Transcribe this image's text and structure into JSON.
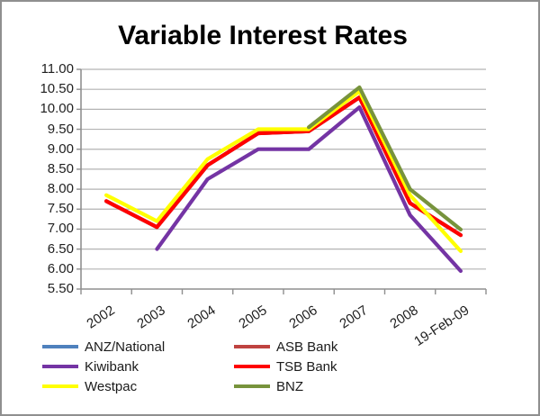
{
  "chart_data": {
    "type": "line",
    "title": "Variable Interest Rates",
    "categories": [
      "2002",
      "2003",
      "2004",
      "2005",
      "2006",
      "2007",
      "2008",
      "19-Feb-09"
    ],
    "series": [
      {
        "name": "ANZ/National",
        "color": "#4f81bd",
        "values": [
          7.7,
          7.05,
          8.6,
          9.4,
          9.45,
          10.3,
          7.65,
          6.85
        ]
      },
      {
        "name": "ASB Bank",
        "color": "#bf4340",
        "values": [
          7.7,
          7.05,
          8.6,
          9.4,
          9.45,
          10.3,
          7.65,
          6.85
        ]
      },
      {
        "name": "Kiwibank",
        "color": "#7434a4",
        "values": [
          null,
          6.5,
          8.25,
          9.0,
          9.0,
          10.05,
          7.35,
          5.95
        ]
      },
      {
        "name": "TSB Bank",
        "color": "#ff0000",
        "values": [
          7.7,
          7.05,
          8.6,
          9.4,
          9.45,
          10.3,
          7.65,
          6.85
        ]
      },
      {
        "name": "Westpac",
        "color": "#ffff00",
        "values": [
          7.85,
          7.2,
          8.75,
          9.5,
          9.5,
          10.45,
          7.85,
          6.45
        ]
      },
      {
        "name": "BNZ",
        "color": "#77933c",
        "values": [
          null,
          null,
          null,
          null,
          9.55,
          10.55,
          8.0,
          6.99
        ]
      }
    ],
    "xlabel": "",
    "ylabel": "",
    "ylim": [
      5.5,
      11.0
    ],
    "ytick_step": 0.5,
    "ytick_labels": [
      "5.50",
      "6.00",
      "6.50",
      "7.00",
      "7.50",
      "8.00",
      "8.50",
      "9.00",
      "9.50",
      "10.00",
      "10.50",
      "11.00"
    ],
    "grid": true,
    "legend_position": "bottom",
    "legend_columns": 2,
    "colors": {
      "gridline": "#b3b3b3",
      "axis": "#8f8f8f",
      "text": "#1f1f1f",
      "background": "#ffffff",
      "frame_border": "#8f8f8f"
    }
  }
}
